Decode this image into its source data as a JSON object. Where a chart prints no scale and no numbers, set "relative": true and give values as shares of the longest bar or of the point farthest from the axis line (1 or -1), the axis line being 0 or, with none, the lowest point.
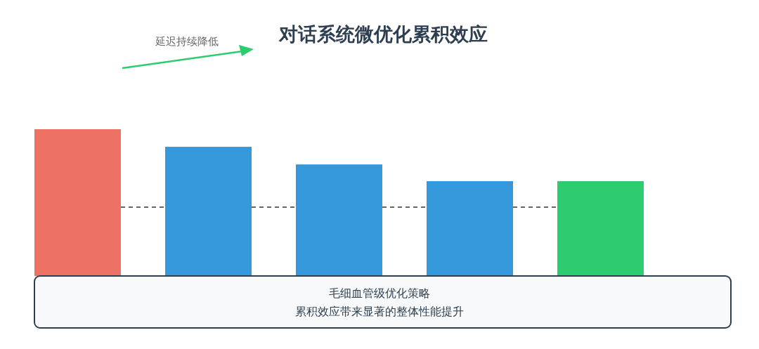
{
  "chart_data": {
    "type": "bar",
    "relative": true,
    "title": "对话系统微优化累积效应",
    "categories": [
      null,
      null,
      null,
      null,
      null
    ],
    "values": [
      1,
      0.88,
      0.76,
      0.646,
      0.646
    ],
    "colors": [
      "#ee7264",
      "#3498db",
      "#3498db",
      "#3498db",
      "#2ecc71"
    ],
    "annotations": [
      "延迟持续降低",
      "毛细血管级优化策略",
      "累积效应带来显著的整体性能提升"
    ]
  }
}
